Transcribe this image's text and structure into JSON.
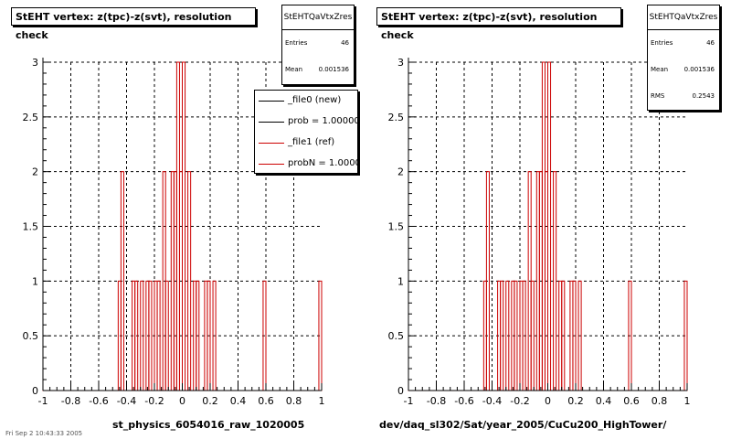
{
  "colors": {
    "hist_line": "#cc0000",
    "grid": "#000000",
    "legend_new": "#000000",
    "legend_ref": "#cc0000"
  },
  "footer_text": "Fri Sep 2 10:43:33 2005",
  "panels": [
    {
      "title": "StEHT  vertex: z(tpc)-z(svt), resolution check",
      "stats": {
        "name": "StEHTQaVtxZres",
        "rows": [
          {
            "label": "Entries",
            "value": "46"
          },
          {
            "label": "Mean",
            "value": "0.001536"
          }
        ]
      },
      "xtitle": "st_physics_6054016_raw_1020005"
    },
    {
      "title": "StEHT  vertex: z(tpc)-z(svt), resolution check",
      "stats": {
        "name": "StEHTQaVtxZres",
        "rows": [
          {
            "label": "Entries",
            "value": "46"
          },
          {
            "label": "Mean",
            "value": "0.001536"
          },
          {
            "label": "RMS",
            "value": "0.2543"
          }
        ]
      },
      "xtitle": "dev/daq_sl302/Sat/year_2005/CuCu200_HighTower/"
    }
  ],
  "legend": {
    "entries": [
      {
        "label": "_file0 (new)",
        "color": "#000000"
      },
      {
        "label": "prob = 1.000000",
        "color": "#000000"
      },
      {
        "label": "_file1 (ref)",
        "color": "#cc0000"
      },
      {
        "label": "probN = 1.000000",
        "color": "#cc0000"
      }
    ]
  },
  "chart_data": [
    {
      "type": "bar",
      "xlim": [
        -1,
        1
      ],
      "ylim": [
        0,
        3
      ],
      "xticks": [
        "-1",
        "-0.8",
        "-0.6",
        "-0.4",
        "-0.2",
        "0",
        "0.2",
        "0.4",
        "0.6",
        "0.8",
        "1"
      ],
      "yticks": [
        "0",
        "0.5",
        "1",
        "1.5",
        "2",
        "2.5",
        "3"
      ],
      "grid": true,
      "bins": {
        "start": -1,
        "width": 0.02
      },
      "entries": [
        {
          "x": -0.45,
          "y": 1
        },
        {
          "x": -0.43,
          "y": 2
        },
        {
          "x": -0.35,
          "y": 1
        },
        {
          "x": -0.33,
          "y": 1
        },
        {
          "x": -0.29,
          "y": 1
        },
        {
          "x": -0.25,
          "y": 1
        },
        {
          "x": -0.23,
          "y": 1
        },
        {
          "x": -0.19,
          "y": 1
        },
        {
          "x": -0.17,
          "y": 1
        },
        {
          "x": -0.13,
          "y": 2
        },
        {
          "x": -0.11,
          "y": 1
        },
        {
          "x": -0.07,
          "y": 2
        },
        {
          "x": -0.05,
          "y": 2
        },
        {
          "x": -0.03,
          "y": 3
        },
        {
          "x": -0.01,
          "y": 2
        },
        {
          "x": 0.01,
          "y": 3
        },
        {
          "x": 0.05,
          "y": 2
        },
        {
          "x": 0.09,
          "y": 1
        },
        {
          "x": 0.11,
          "y": 1
        },
        {
          "x": 0.17,
          "y": 1
        },
        {
          "x": 0.19,
          "y": 1
        },
        {
          "x": 0.23,
          "y": 1
        },
        {
          "x": 0.59,
          "y": 1
        },
        {
          "x": 0.99,
          "y": 1
        }
      ]
    },
    {
      "type": "bar",
      "xlim": [
        -1,
        1
      ],
      "ylim": [
        0,
        3
      ],
      "xticks": [
        "-1",
        "-0.8",
        "-0.6",
        "-0.4",
        "-0.2",
        "0",
        "0.2",
        "0.4",
        "0.6",
        "0.8",
        "1"
      ],
      "yticks": [
        "0",
        "0.5",
        "1",
        "1.5",
        "2",
        "2.5",
        "3"
      ],
      "grid": true,
      "bins": {
        "start": -1,
        "width": 0.02
      },
      "entries": [
        {
          "x": -0.45,
          "y": 1
        },
        {
          "x": -0.43,
          "y": 2
        },
        {
          "x": -0.35,
          "y": 1
        },
        {
          "x": -0.33,
          "y": 1
        },
        {
          "x": -0.29,
          "y": 1
        },
        {
          "x": -0.25,
          "y": 1
        },
        {
          "x": -0.23,
          "y": 1
        },
        {
          "x": -0.19,
          "y": 1
        },
        {
          "x": -0.17,
          "y": 1
        },
        {
          "x": -0.13,
          "y": 2
        },
        {
          "x": -0.11,
          "y": 1
        },
        {
          "x": -0.07,
          "y": 2
        },
        {
          "x": -0.05,
          "y": 2
        },
        {
          "x": -0.03,
          "y": 3
        },
        {
          "x": -0.01,
          "y": 2
        },
        {
          "x": 0.01,
          "y": 3
        },
        {
          "x": 0.05,
          "y": 2
        },
        {
          "x": 0.09,
          "y": 1
        },
        {
          "x": 0.11,
          "y": 1
        },
        {
          "x": 0.17,
          "y": 1
        },
        {
          "x": 0.19,
          "y": 1
        },
        {
          "x": 0.23,
          "y": 1
        },
        {
          "x": 0.59,
          "y": 1
        },
        {
          "x": 0.99,
          "y": 1
        }
      ]
    }
  ]
}
